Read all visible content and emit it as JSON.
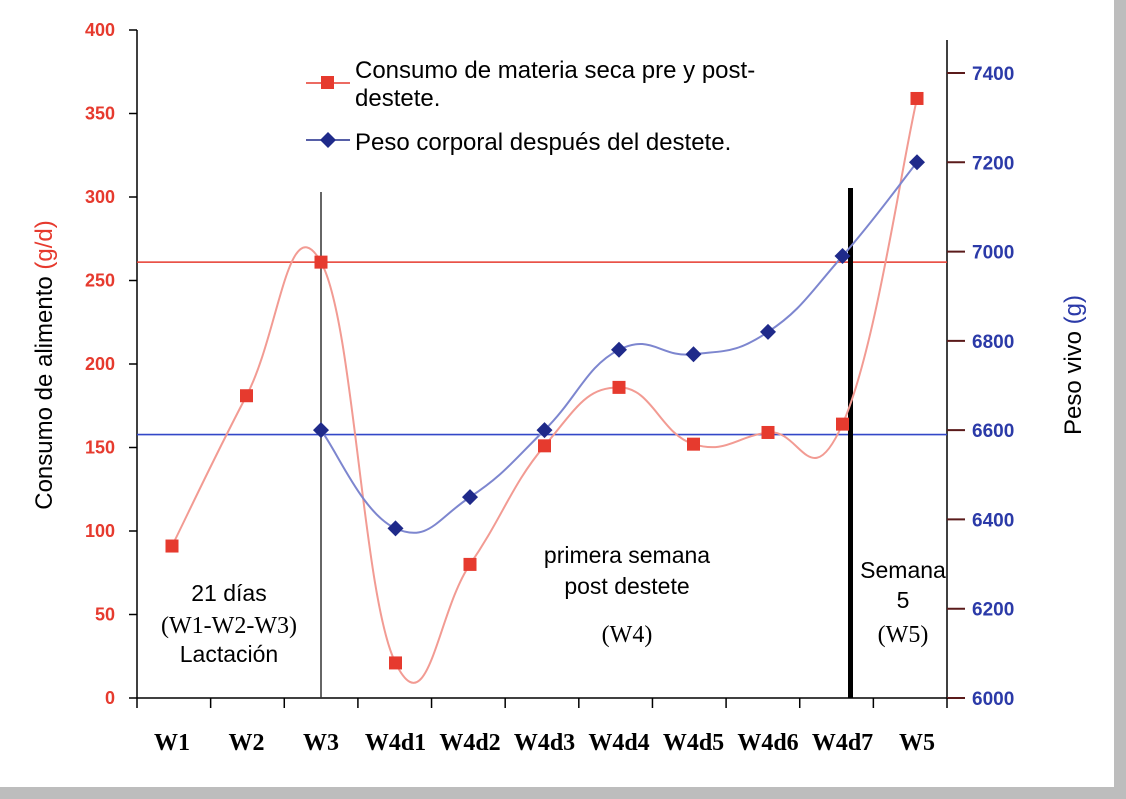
{
  "chart_data": {
    "type": "line",
    "categories": [
      "W1",
      "W2",
      "W3",
      "W4d1",
      "W4d2",
      "W4d3",
      "W4d4",
      "W4d5",
      "W4d6",
      "W4d7",
      "W5"
    ],
    "y_left": {
      "label_main": "Consumo de alimento ",
      "label_unit": "(g/d)",
      "range": [
        0,
        400
      ],
      "ticks": [
        0,
        50,
        100,
        150,
        200,
        250,
        300,
        350,
        400
      ],
      "color": "#e63a2e"
    },
    "y_right": {
      "label_main": "Peso vivo ",
      "label_unit": "(g)",
      "range": [
        6000,
        7400
      ],
      "ticks": [
        6000,
        6200,
        6400,
        6600,
        6800,
        7000,
        7200,
        7400
      ],
      "color": "#2b3aa8"
    },
    "series": [
      {
        "name": "Consumo de materia seca pre y post-destete.",
        "name_line1": "Consumo de materia seca pre y post-",
        "name_line2": "destete.",
        "axis": "left",
        "color": "#e63a2e",
        "marker": "square",
        "x": [
          "W1",
          "W2",
          "W3",
          "W4d1",
          "W4d2",
          "W4d3",
          "W4d4",
          "W4d5",
          "W4d6",
          "W4d7",
          "W5"
        ],
        "values": [
          91,
          181,
          261,
          21,
          80,
          151,
          186,
          152,
          159,
          164,
          359
        ]
      },
      {
        "name": "Peso corporal después del destete.",
        "axis": "right",
        "color": "#1f2a8a",
        "marker": "diamond",
        "x": [
          "W3",
          "W4d1",
          "W4d2",
          "W4d3",
          "W4d4",
          "W4d5",
          "W4d6",
          "W4d7",
          "W5"
        ],
        "values": [
          6600,
          6380,
          6450,
          6600,
          6780,
          6770,
          6820,
          6990,
          7200
        ]
      }
    ],
    "reference_lines": [
      {
        "axis": "left",
        "value": 261,
        "color": "#e63a2e"
      },
      {
        "axis": "right",
        "value": 6590,
        "color": "#3348c8"
      }
    ],
    "vertical_markers": [
      {
        "at": "W3",
        "style": "thin"
      },
      {
        "at": "W4d7",
        "style": "thick"
      }
    ],
    "annotations": [
      {
        "id": "lactation",
        "lines": [
          "21 días",
          "(W1-W2-W3)",
          "Lactación"
        ]
      },
      {
        "id": "week4",
        "lines": [
          "primera semana",
          "post destete",
          "(W4)"
        ]
      },
      {
        "id": "week5",
        "lines": [
          "Semana",
          "5",
          "(W5)"
        ]
      }
    ],
    "legend_position": "top-center",
    "grid": false
  }
}
